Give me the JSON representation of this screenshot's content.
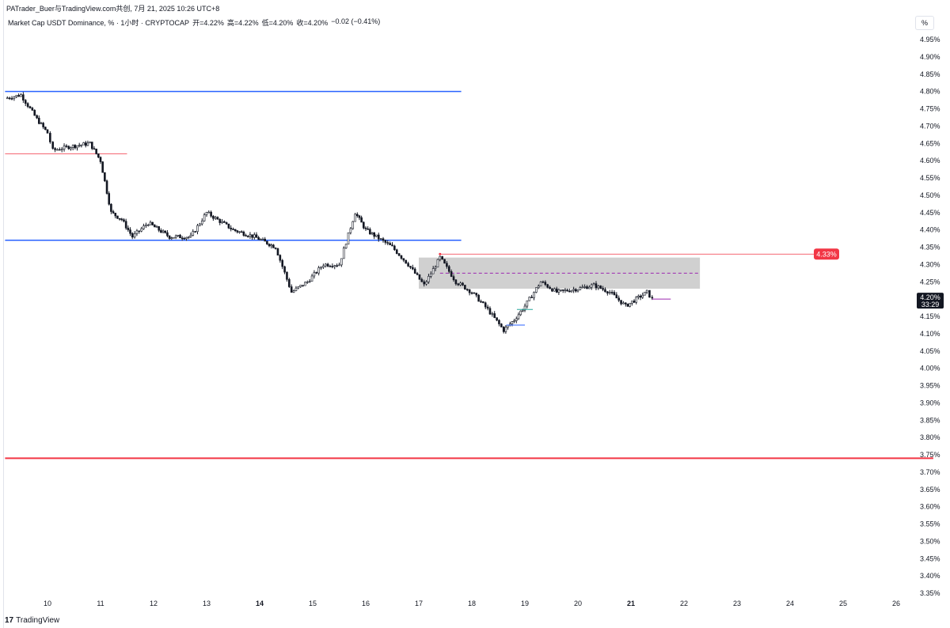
{
  "credit": "PATrader_Buer与TradingView.com共创, 7月 21, 2025 10:26 UTC+8",
  "legend": {
    "symbol": "Market Cap USDT Dominance, % · 1小时 · CRYPTOCAP",
    "open": "开=4.22%",
    "high": "高=4.22%",
    "low": "低=4.20%",
    "close": "收=4.20%",
    "change": "−0.02 (−0.41%)"
  },
  "scale_button": "%",
  "footer": {
    "logo_glyph": "17",
    "brand": "TradingView"
  },
  "price_label": {
    "value": "4.20%",
    "countdown": "33:29"
  },
  "colors": {
    "blue_line": "#2962ff",
    "red_line": "#f23645",
    "zone_fill": "#c8c8c8",
    "candle": "#131722",
    "alert_label_bg": "#f23645",
    "current_price_bg": "#131722"
  },
  "chart_data": {
    "type": "candlestick",
    "title": "Market Cap USDT Dominance",
    "ylim": [
      3.35,
      4.95
    ],
    "y_ticks": [
      "4.95%",
      "4.90%",
      "4.85%",
      "4.80%",
      "4.75%",
      "4.70%",
      "4.65%",
      "4.60%",
      "4.55%",
      "4.50%",
      "4.45%",
      "4.40%",
      "4.35%",
      "4.30%",
      "4.25%",
      "4.20%",
      "4.15%",
      "4.10%",
      "4.05%",
      "4.00%",
      "3.95%",
      "3.90%",
      "3.85%",
      "3.80%",
      "3.75%",
      "3.70%",
      "3.65%",
      "3.60%",
      "3.55%",
      "3.50%",
      "3.45%",
      "3.40%",
      "3.35%"
    ],
    "x_ticks": [
      {
        "label": "10",
        "day": 10,
        "bold": false
      },
      {
        "label": "11",
        "day": 11,
        "bold": false
      },
      {
        "label": "12",
        "day": 12,
        "bold": false
      },
      {
        "label": "13",
        "day": 13,
        "bold": false
      },
      {
        "label": "14",
        "day": 14,
        "bold": true
      },
      {
        "label": "15",
        "day": 15,
        "bold": false
      },
      {
        "label": "16",
        "day": 16,
        "bold": false
      },
      {
        "label": "17",
        "day": 17,
        "bold": false
      },
      {
        "label": "18",
        "day": 18,
        "bold": false
      },
      {
        "label": "19",
        "day": 19,
        "bold": false
      },
      {
        "label": "20",
        "day": 20,
        "bold": false
      },
      {
        "label": "21",
        "day": 21,
        "bold": true
      },
      {
        "label": "22",
        "day": 22,
        "bold": false
      },
      {
        "label": "23",
        "day": 23,
        "bold": false
      },
      {
        "label": "24",
        "day": 24,
        "bold": false
      },
      {
        "label": "25",
        "day": 25,
        "bold": false
      },
      {
        "label": "26",
        "day": 26,
        "bold": false
      }
    ],
    "path": [
      [
        9.2,
        4.78
      ],
      [
        9.5,
        4.79
      ],
      [
        9.8,
        4.72
      ],
      [
        10.0,
        4.68
      ],
      [
        10.1,
        4.63
      ],
      [
        10.4,
        4.64
      ],
      [
        10.8,
        4.65
      ],
      [
        11.0,
        4.6
      ],
      [
        11.2,
        4.45
      ],
      [
        11.4,
        4.43
      ],
      [
        11.6,
        4.38
      ],
      [
        11.9,
        4.42
      ],
      [
        12.3,
        4.38
      ],
      [
        12.7,
        4.38
      ],
      [
        13.0,
        4.45
      ],
      [
        13.5,
        4.4
      ],
      [
        13.9,
        4.38
      ],
      [
        14.3,
        4.35
      ],
      [
        14.6,
        4.22
      ],
      [
        14.9,
        4.25
      ],
      [
        15.2,
        4.3
      ],
      [
        15.5,
        4.3
      ],
      [
        15.8,
        4.45
      ],
      [
        16.0,
        4.4
      ],
      [
        16.2,
        4.38
      ],
      [
        16.5,
        4.35
      ],
      [
        16.8,
        4.3
      ],
      [
        17.1,
        4.24
      ],
      [
        17.4,
        4.32
      ],
      [
        17.7,
        4.25
      ],
      [
        18.0,
        4.22
      ],
      [
        18.3,
        4.17
      ],
      [
        18.6,
        4.11
      ],
      [
        18.8,
        4.14
      ],
      [
        19.0,
        4.18
      ],
      [
        19.3,
        4.25
      ],
      [
        19.6,
        4.22
      ],
      [
        20.0,
        4.23
      ],
      [
        20.3,
        4.24
      ],
      [
        20.6,
        4.22
      ],
      [
        20.9,
        4.18
      ],
      [
        21.1,
        4.2
      ],
      [
        21.3,
        4.22
      ],
      [
        21.4,
        4.2
      ]
    ],
    "levels": [
      {
        "name": "resistance-high",
        "y": 4.8,
        "color": "blue",
        "x_from": 9.2,
        "x_to": 17.8
      },
      {
        "name": "resistance-mid",
        "y": 4.37,
        "color": "blue",
        "x_from": 9.2,
        "x_to": 17.8
      },
      {
        "name": "support-low",
        "y": 3.74,
        "color": "red",
        "x_from": 9.2,
        "x_to": 26.7
      },
      {
        "name": "consolidation-top",
        "y": 4.62,
        "color": "red",
        "x_from": 9.2,
        "x_to": 11.5
      },
      {
        "name": "alert-line",
        "y": 4.33,
        "color": "red",
        "x_from": 17.4,
        "x_to": 24.5
      }
    ],
    "zone": {
      "y_top": 4.32,
      "y_bottom": 4.23,
      "x_from": 17.0,
      "x_to": 22.3,
      "midline": 4.275
    },
    "alert_label": "4.33%",
    "alert_value": 4.33,
    "current_price": 4.2
  }
}
